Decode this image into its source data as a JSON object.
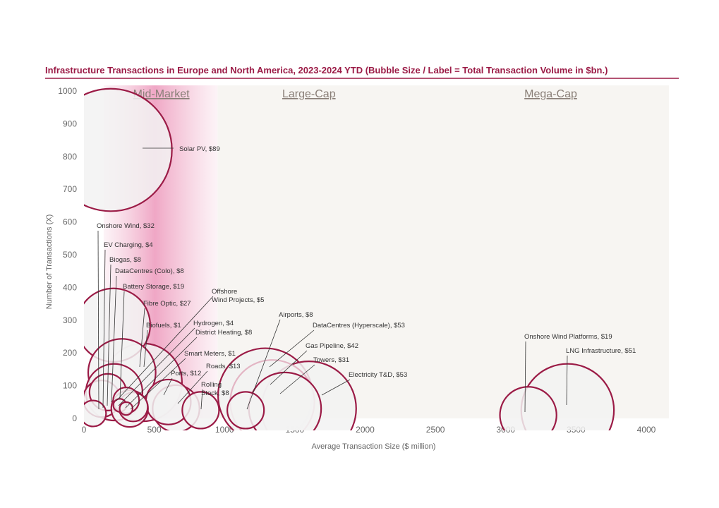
{
  "chart_data": {
    "type": "scatter",
    "title": "Infrastructure Transactions in Europe and North America, 2023-2024 YTD (Bubble Size / Label = Total Transaction Volume in $bn.)",
    "xlabel": "Average Transaction Size ($ million)",
    "ylabel": "Number of Transactions (X)",
    "xlim": [
      0,
      4000
    ],
    "ylim": [
      0,
      1000
    ],
    "xticks": [
      "0",
      "500",
      "1000",
      "1500",
      "2000",
      "2500",
      "3000",
      "3500",
      "4000"
    ],
    "yticks": [
      "0",
      "100",
      "200",
      "300",
      "400",
      "500",
      "600",
      "700",
      "800",
      "900",
      "1000"
    ],
    "segments": [
      {
        "label": "Mid-Market",
        "x_range": [
          140,
          950
        ]
      },
      {
        "label": "Large-Cap",
        "x_range": [
          950,
          3000
        ]
      },
      {
        "label": "Mega-Cap",
        "x_range": [
          3000,
          4150
        ]
      }
    ],
    "series": [
      {
        "label": "Solar PV, $89",
        "x": 190,
        "y": 820,
        "volume": 89
      },
      {
        "label": "Onshore Wind, $32",
        "x": 210,
        "y": 285,
        "volume": 32
      },
      {
        "label": "EV Charging, $4",
        "x": 65,
        "y": 15,
        "volume": 4
      },
      {
        "label": "Biogas, $8",
        "x": 125,
        "y": 60,
        "volume": 8
      },
      {
        "label": "DataCentres (Colo), $8",
        "x": 170,
        "y": 80,
        "volume": 8
      },
      {
        "label": "Battery Storage, $19",
        "x": 215,
        "y": 80,
        "volume": 19
      },
      {
        "label": "Fibre Optic, $27",
        "x": 270,
        "y": 140,
        "volume": 27
      },
      {
        "label": "Biofuels, $1",
        "x": 255,
        "y": 40,
        "volume": 1
      },
      {
        "label": "Hydrogen, $4",
        "x": 300,
        "y": 55,
        "volume": 4
      },
      {
        "label": "District Heating, $8",
        "x": 325,
        "y": 30,
        "volume": 8
      },
      {
        "label": "Offshore Wind Projects, $5",
        "x": 350,
        "y": 35,
        "volume": 5
      },
      {
        "label": "Smart Meters, $1",
        "x": 300,
        "y": 30,
        "volume": 1
      },
      {
        "label": "Ports, $12",
        "x": 600,
        "y": 50,
        "volume": 12
      },
      {
        "label": "Roads, $13",
        "x": 655,
        "y": 30,
        "volume": 13
      },
      {
        "label": "Rolling Stock, $8",
        "x": 830,
        "y": 25,
        "volume": 8
      },
      {
        "label": "Airports, $8",
        "x": 1150,
        "y": 25,
        "volume": 8
      },
      {
        "label": "DataCentres (Hyperscale), $53",
        "x": 1290,
        "y": 70,
        "volume": 53
      },
      {
        "label": "Gas Pipeline, $42",
        "x": 1340,
        "y": 50,
        "volume": 42
      },
      {
        "label": "Towers, $31",
        "x": 1430,
        "y": 30,
        "volume": 31
      },
      {
        "label": "Electricity T&D, $53",
        "x": 1600,
        "y": 30,
        "volume": 53
      },
      {
        "label": "Onshore Wind Platforms, $19",
        "x": 3160,
        "y": 10,
        "volume": 19
      },
      {
        "label": "LNG Infrastructure, $51",
        "x": 3440,
        "y": 25,
        "volume": 51
      },
      {
        "label": "",
        "x": 420,
        "y": 110,
        "volume": 36
      }
    ],
    "grid": false,
    "colors": {
      "title": "#9b1b46",
      "bubble_stroke": "#9b1b46",
      "bubble_stroke_light": "#e3b5c4",
      "bubble_fill": "#f2f2f2",
      "midmarket_band": "#e88bb0",
      "bg_band": "#f7f5f2"
    }
  }
}
